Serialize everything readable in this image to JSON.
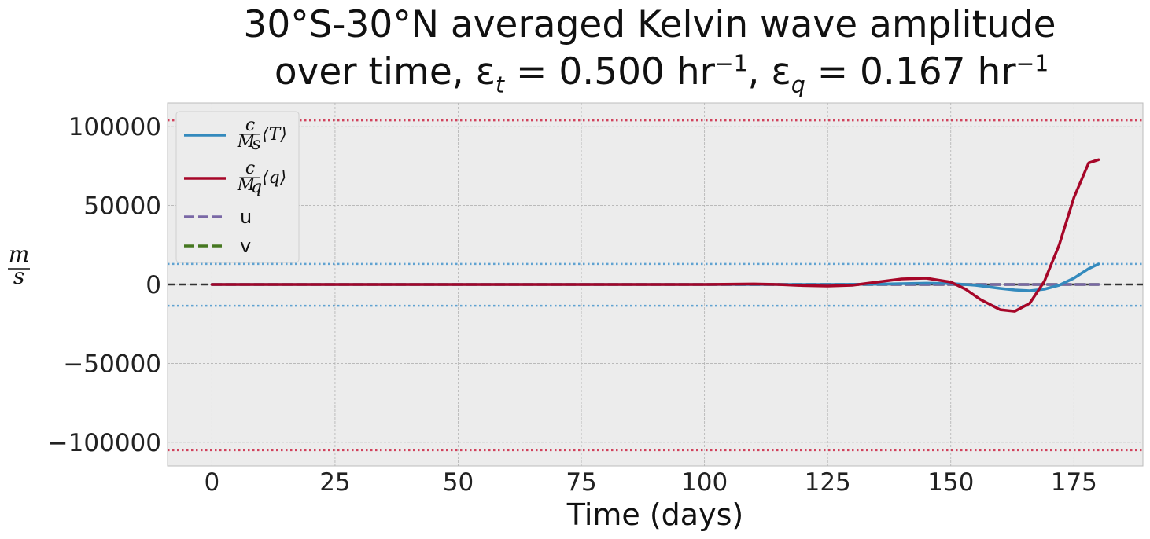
{
  "chart_data": {
    "type": "line",
    "title_line1": "30°S-30°N averaged Kelvin wave amplitude",
    "title_line2_pre": "over time, ε",
    "title_line2_sub1": "t",
    "title_line2_mid": " = 0.500 hr",
    "title_line2_sup1": "−1",
    "title_line2_sep": ",  ε",
    "title_line2_sub2": "q",
    "title_line2_mid2": " = 0.167 hr",
    "title_line2_sup2": "−1",
    "xlabel": "Time (days)",
    "ylabel_num": "m",
    "ylabel_den": "s",
    "xlim": [
      -9,
      189
    ],
    "ylim": [
      -115000,
      115000
    ],
    "xticks": [
      0,
      25,
      50,
      75,
      100,
      125,
      150,
      175
    ],
    "yticks": [
      -100000,
      -50000,
      0,
      50000,
      100000
    ],
    "ytick_labels": [
      "−100000",
      "−50000",
      "0",
      "50000",
      "100000"
    ],
    "grid": true,
    "legend_position": "top-left",
    "reference_lines": [
      {
        "y": 104000,
        "color": "#d1425c",
        "style": "dotted"
      },
      {
        "y": -105000,
        "color": "#d1425c",
        "style": "dotted"
      },
      {
        "y": 13000,
        "color": "#5fa2d1",
        "style": "dotted"
      },
      {
        "y": -13500,
        "color": "#5fa2d1",
        "style": "dotted"
      },
      {
        "y": 0,
        "color": "#333333",
        "style": "dashed"
      }
    ],
    "series": [
      {
        "name": "c/M_s ⟨T⟩",
        "color": "#348abd",
        "style": "solid",
        "x": [
          0,
          20,
          40,
          60,
          80,
          100,
          115,
          125,
          135,
          140,
          145,
          150,
          155,
          160,
          163,
          166,
          169,
          172,
          175,
          178,
          180
        ],
        "y": [
          0,
          0,
          0,
          0,
          0,
          0,
          0,
          0,
          200,
          500,
          800,
          600,
          -500,
          -2500,
          -3500,
          -4000,
          -3000,
          -500,
          4000,
          10000,
          13000
        ]
      },
      {
        "name": "c/M_q ⟨q⟩",
        "color": "#a60628",
        "style": "solid",
        "x": [
          0,
          20,
          40,
          60,
          80,
          100,
          110,
          115,
          120,
          125,
          130,
          135,
          140,
          145,
          150,
          153,
          156,
          160,
          163,
          166,
          169,
          172,
          175,
          178,
          180
        ],
        "y": [
          0,
          0,
          0,
          0,
          0,
          0,
          300,
          0,
          -700,
          -1000,
          -500,
          1500,
          3500,
          4000,
          1500,
          -3000,
          -9500,
          -16000,
          -17000,
          -12000,
          2000,
          25000,
          55000,
          77000,
          79000
        ]
      },
      {
        "name": "u",
        "color": "#7a68a6",
        "style": "dashed",
        "x": [
          0,
          180
        ],
        "y": [
          0,
          0
        ]
      },
      {
        "name": "v",
        "color": "#467821",
        "style": "dashed",
        "x": [
          0,
          180
        ],
        "y": [
          0,
          0
        ]
      }
    ],
    "legend_labels": {
      "T_c": "c",
      "T_M": "M",
      "T_Msub": "s",
      "T_var": "⟨T⟩",
      "q_c": "c",
      "q_M": "M",
      "q_Msub": "q",
      "q_var": "⟨q⟩",
      "u": "u",
      "v": "v"
    }
  }
}
